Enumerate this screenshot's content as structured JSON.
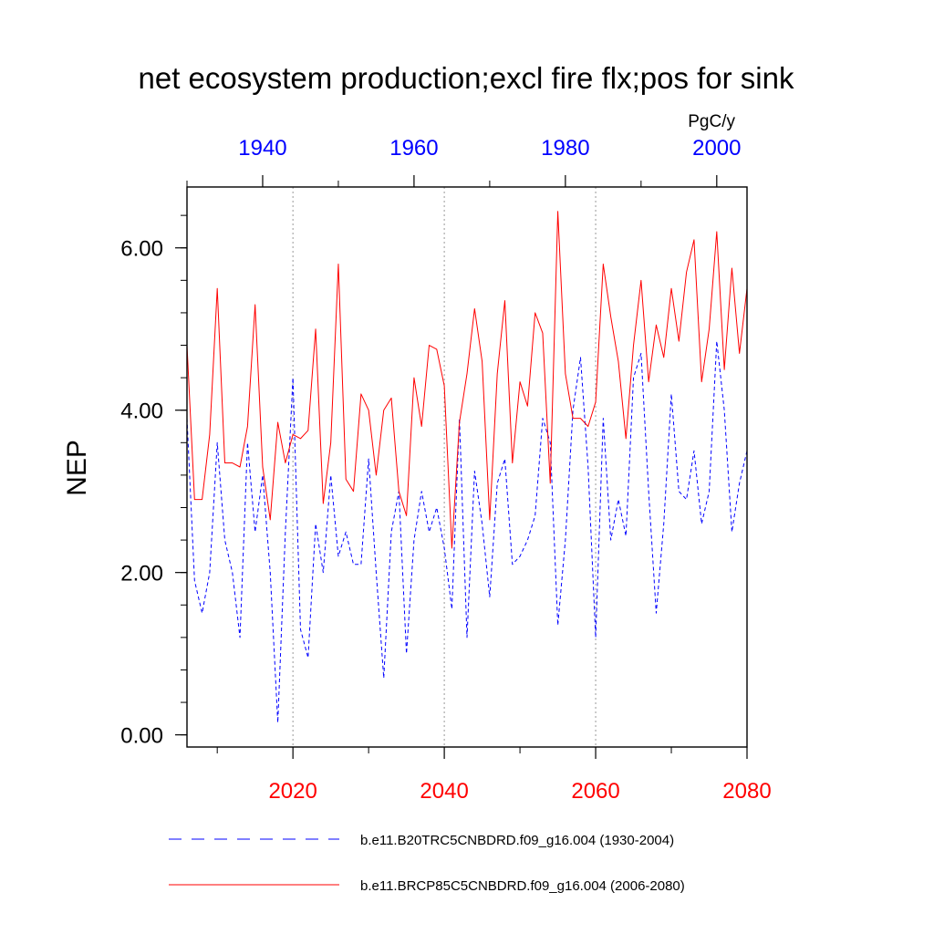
{
  "chart_data": {
    "type": "line",
    "title": "net ecosystem production;excl fire flx;pos for sink",
    "ylabel": "NEP",
    "units": "PgC/y",
    "ylim": [
      -0.15,
      6.75
    ],
    "yticks": [
      0,
      2,
      4,
      6
    ],
    "ytick_labels": [
      "0.00",
      "2.00",
      "4.00",
      "6.00"
    ],
    "x_bottom": {
      "range": [
        2006,
        2080
      ],
      "ticks": [
        2020,
        2040,
        2060,
        2080
      ],
      "tick_labels": [
        "2020",
        "2040",
        "2060",
        "2080"
      ],
      "color": "#ff0000"
    },
    "x_top": {
      "range": [
        1930,
        2004
      ],
      "ticks": [
        1940,
        1960,
        1980,
        2000
      ],
      "tick_labels": [
        "1940",
        "1960",
        "1980",
        "2000"
      ],
      "color": "#0000ff"
    },
    "gridlines_x": [
      2020,
      2040,
      2060
    ],
    "series": [
      {
        "name": "b.e11.B20TRC5CNBDRD.f09_g16.004 (1930-2004)",
        "axis": "top",
        "style": "dashed",
        "color": "#0000ff",
        "x_start": 1930,
        "values": [
          3.9,
          1.9,
          1.5,
          2.0,
          3.6,
          2.4,
          2.0,
          1.2,
          3.6,
          2.5,
          3.2,
          2.0,
          0.15,
          2.5,
          4.4,
          1.3,
          0.95,
          2.6,
          2.0,
          3.2,
          2.2,
          2.5,
          2.1,
          2.1,
          3.4,
          2.0,
          0.7,
          2.5,
          3.0,
          1.0,
          2.4,
          3.0,
          2.5,
          2.8,
          2.3,
          1.55,
          3.9,
          1.2,
          3.25,
          2.6,
          1.7,
          3.1,
          3.4,
          2.1,
          2.2,
          2.4,
          2.7,
          3.9,
          3.6,
          1.35,
          2.4,
          4.0,
          4.65,
          3.3,
          1.2,
          3.9,
          2.4,
          2.9,
          2.45,
          4.4,
          4.7,
          3.0,
          1.5,
          2.6,
          4.2,
          3.0,
          2.9,
          3.5,
          2.6,
          3.0,
          4.85,
          4.0,
          2.5,
          3.1,
          3.5
        ]
      },
      {
        "name": "b.e11.BRCP85C5CNBDRD.f09_g16.004 (2006-2080)",
        "axis": "bottom",
        "style": "solid",
        "color": "#ff0000",
        "x_start": 2006,
        "values": [
          4.8,
          2.9,
          2.9,
          3.7,
          5.5,
          3.35,
          3.35,
          3.3,
          3.8,
          5.3,
          3.3,
          2.65,
          3.85,
          3.35,
          3.7,
          3.65,
          3.75,
          5.0,
          2.85,
          3.6,
          5.8,
          3.15,
          3.0,
          4.2,
          4.0,
          3.2,
          4.0,
          4.15,
          3.0,
          2.7,
          4.4,
          3.8,
          4.8,
          4.75,
          4.3,
          2.3,
          3.85,
          4.45,
          5.25,
          4.6,
          2.65,
          4.45,
          5.35,
          3.35,
          4.35,
          4.05,
          5.2,
          4.95,
          3.1,
          6.45,
          4.45,
          3.9,
          3.9,
          3.8,
          4.1,
          5.8,
          5.15,
          4.6,
          3.65,
          4.8,
          5.6,
          4.35,
          5.05,
          4.65,
          5.5,
          4.85,
          5.7,
          6.1,
          4.35,
          5.0,
          6.2,
          4.5,
          5.75,
          4.7,
          5.5
        ]
      }
    ],
    "legend": {
      "placement": "bottom",
      "entries": [
        "b.e11.B20TRC5CNBDRD.f09_g16.004 (1930-2004)",
        "b.e11.BRCP85C5CNBDRD.f09_g16.004 (2006-2080)"
      ]
    }
  }
}
